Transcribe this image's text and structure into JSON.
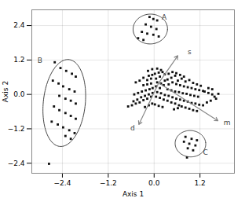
{
  "chart_data": {
    "type": "scatter",
    "xlabel": "Axis 1",
    "ylabel": "Axis 2",
    "xlim": [
      -3.2,
      2.1
    ],
    "ylim": [
      -2.75,
      2.95
    ],
    "xticks": [
      -2.4,
      -1.2,
      0,
      1.2
    ],
    "yticks": [
      -2.4,
      -1.2,
      0,
      1.2,
      2.4
    ],
    "grid": true,
    "series": [
      {
        "color": "#111111",
        "marker": "square",
        "values": [
          [
            0.05,
            0.55
          ],
          [
            0.15,
            0.62
          ],
          [
            0.28,
            0.7
          ],
          [
            0.35,
            0.52
          ],
          [
            0.45,
            0.58
          ],
          [
            0.55,
            0.65
          ],
          [
            0.62,
            0.48
          ],
          [
            0.72,
            0.55
          ],
          [
            0.82,
            0.45
          ],
          [
            0.92,
            0.5
          ],
          [
            1.02,
            0.4
          ],
          [
            1.12,
            0.35
          ],
          [
            1.22,
            0.3
          ],
          [
            0.08,
            0.42
          ],
          [
            0.18,
            0.38
          ],
          [
            0.28,
            0.48
          ],
          [
            0.38,
            0.35
          ],
          [
            0.48,
            0.42
          ],
          [
            0.58,
            0.36
          ],
          [
            0.68,
            0.32
          ],
          [
            0.78,
            0.28
          ],
          [
            0.88,
            0.25
          ],
          [
            0.98,
            0.22
          ],
          [
            1.08,
            0.18
          ],
          [
            1.18,
            0.15
          ],
          [
            1.28,
            0.12
          ],
          [
            0.05,
            0.28
          ],
          [
            0.15,
            0.22
          ],
          [
            0.25,
            0.32
          ],
          [
            0.35,
            0.18
          ],
          [
            0.45,
            0.14
          ],
          [
            0.55,
            0.1
          ],
          [
            0.65,
            0.08
          ],
          [
            0.75,
            0.04
          ],
          [
            0.85,
            0.02
          ],
          [
            0.95,
            -0.02
          ],
          [
            1.05,
            -0.05
          ],
          [
            1.15,
            -0.08
          ],
          [
            0.08,
            0.08
          ],
          [
            0.18,
            0.04
          ],
          [
            0.28,
            -0.02
          ],
          [
            0.38,
            -0.05
          ],
          [
            0.48,
            -0.1
          ],
          [
            0.58,
            -0.15
          ],
          [
            0.68,
            -0.18
          ],
          [
            0.78,
            -0.22
          ],
          [
            0.88,
            -0.25
          ],
          [
            0.98,
            -0.3
          ],
          [
            1.08,
            -0.32
          ],
          [
            1.18,
            -0.36
          ],
          [
            1.28,
            -0.38
          ],
          [
            1.38,
            -0.28
          ],
          [
            1.48,
            -0.22
          ],
          [
            0.05,
            -0.08
          ],
          [
            0.15,
            -0.12
          ],
          [
            0.25,
            -0.18
          ],
          [
            0.35,
            -0.22
          ],
          [
            0.45,
            -0.28
          ],
          [
            0.55,
            -0.32
          ],
          [
            0.65,
            -0.38
          ],
          [
            -0.08,
            0.55
          ],
          [
            -0.18,
            0.5
          ],
          [
            -0.28,
            0.58
          ],
          [
            -0.38,
            0.48
          ],
          [
            -0.48,
            0.42
          ],
          [
            -0.08,
            0.38
          ],
          [
            -0.18,
            0.35
          ],
          [
            -0.28,
            0.32
          ],
          [
            -0.04,
            0.22
          ],
          [
            -0.12,
            0.18
          ],
          [
            -0.22,
            0.14
          ],
          [
            -0.32,
            0.1
          ],
          [
            -0.42,
            0.05
          ],
          [
            -0.52,
            0.0
          ],
          [
            -0.04,
            0.05
          ],
          [
            -0.14,
            0.0
          ],
          [
            -0.24,
            -0.05
          ],
          [
            -0.34,
            -0.1
          ],
          [
            -0.44,
            -0.18
          ],
          [
            -0.54,
            -0.24
          ],
          [
            -0.08,
            -0.08
          ],
          [
            -0.18,
            -0.15
          ],
          [
            -0.28,
            -0.2
          ],
          [
            -0.38,
            -0.28
          ],
          [
            -0.48,
            -0.32
          ],
          [
            -0.58,
            -0.38
          ],
          [
            -0.68,
            -0.42
          ],
          [
            0.02,
            0.72
          ],
          [
            0.12,
            0.76
          ],
          [
            0.22,
            0.78
          ],
          [
            -0.05,
            0.68
          ],
          [
            -0.14,
            0.65
          ],
          [
            0.38,
            0.72
          ],
          [
            0.48,
            0.78
          ],
          [
            0.58,
            0.74
          ],
          [
            0.68,
            0.68
          ],
          [
            0.78,
            0.62
          ],
          [
            1.32,
            0.1
          ],
          [
            1.42,
            0.05
          ],
          [
            1.52,
            0.0
          ],
          [
            1.58,
            -0.08
          ],
          [
            1.62,
            -0.15
          ],
          [
            1.68,
            0.02
          ],
          [
            1.52,
            0.18
          ],
          [
            1.42,
            0.22
          ],
          [
            0.72,
            -0.42
          ],
          [
            0.82,
            -0.46
          ],
          [
            0.92,
            -0.5
          ],
          [
            1.02,
            -0.55
          ],
          [
            0.62,
            -0.48
          ],
          [
            0.52,
            -0.52
          ],
          [
            1.12,
            -0.58
          ],
          [
            0.02,
            -0.35
          ],
          [
            0.12,
            -0.4
          ],
          [
            0.22,
            -0.44
          ],
          [
            -0.05,
            -0.32
          ],
          [
            -0.14,
            -0.38
          ],
          [
            -0.24,
            -0.44
          ],
          [
            -0.05,
            0.88
          ],
          [
            0.08,
            0.9
          ],
          [
            0.18,
            0.85
          ],
          [
            -0.16,
            0.82
          ]
        ]
      },
      {
        "color": "#111111",
        "marker": "square",
        "values": [
          [
            -0.12,
            2.7
          ],
          [
            -0.02,
            2.63
          ],
          [
            0.08,
            2.58
          ],
          [
            -0.22,
            2.44
          ],
          [
            -0.08,
            2.36
          ],
          [
            0.06,
            2.28
          ],
          [
            -0.32,
            2.18
          ],
          [
            -0.18,
            2.12
          ],
          [
            -0.02,
            2.08
          ],
          [
            0.12,
            2.02
          ],
          [
            -0.42,
            1.96
          ],
          [
            -0.28,
            1.9
          ]
        ]
      },
      {
        "color": "#111111",
        "marker": "square",
        "values": [
          [
            -2.75,
            -2.42
          ],
          [
            -2.6,
            1.12
          ],
          [
            -2.45,
            0.92
          ],
          [
            -2.3,
            0.82
          ],
          [
            -2.15,
            0.72
          ],
          [
            -2.05,
            0.62
          ],
          [
            -2.65,
            0.48
          ],
          [
            -2.5,
            0.38
          ],
          [
            -2.38,
            0.28
          ],
          [
            -2.22,
            0.18
          ],
          [
            -2.08,
            0.1
          ],
          [
            -2.48,
            -0.05
          ],
          [
            -2.32,
            -0.15
          ],
          [
            -2.18,
            -0.22
          ],
          [
            -2.05,
            -0.32
          ],
          [
            -2.62,
            -0.42
          ],
          [
            -2.48,
            -0.55
          ],
          [
            -2.32,
            -0.65
          ],
          [
            -2.18,
            -0.75
          ],
          [
            -2.05,
            -0.85
          ],
          [
            -2.68,
            -0.95
          ],
          [
            -2.52,
            -1.05
          ],
          [
            -2.38,
            -1.15
          ],
          [
            -2.22,
            -1.25
          ],
          [
            -2.08,
            -1.35
          ],
          [
            -2.32,
            -1.45
          ],
          [
            -2.18,
            -1.55
          ]
        ]
      },
      {
        "color": "#111111",
        "marker": "square",
        "values": [
          [
            0.82,
            -1.48
          ],
          [
            0.98,
            -1.55
          ],
          [
            1.12,
            -1.6
          ],
          [
            0.78,
            -1.65
          ],
          [
            0.92,
            -1.72
          ],
          [
            1.08,
            -1.78
          ],
          [
            0.88,
            -1.88
          ],
          [
            1.02,
            -1.95
          ],
          [
            0.86,
            -2.2
          ]
        ]
      }
    ],
    "ellipses": [
      {
        "cx": -0.1,
        "cy": 2.28,
        "rx": 0.45,
        "ry": 0.52,
        "angle": -3,
        "color": "#444444"
      },
      {
        "cx": -2.35,
        "cy": -0.3,
        "rx": 0.55,
        "ry": 1.52,
        "angle": -4,
        "color": "#444444"
      },
      {
        "cx": 0.95,
        "cy": -1.72,
        "rx": 0.4,
        "ry": 0.46,
        "angle": 5,
        "color": "#444444"
      }
    ],
    "arrows": [
      {
        "x1": 0.12,
        "y1": 0.4,
        "x2": 0.62,
        "y2": 1.35,
        "color": "#888888"
      },
      {
        "x1": 0.12,
        "y1": 0.4,
        "x2": -0.4,
        "y2": -1.05,
        "color": "#888888"
      },
      {
        "x1": 0.12,
        "y1": 0.4,
        "x2": 1.67,
        "y2": -0.92,
        "color": "#888888"
      }
    ],
    "annotations": [
      {
        "x": 0.2,
        "y": 2.68,
        "text": "A",
        "color": "#444444"
      },
      {
        "x": -3.05,
        "y": 1.18,
        "text": "B",
        "color": "#444444"
      },
      {
        "x": 1.28,
        "y": -2.02,
        "text": "C",
        "color": "#444444"
      },
      {
        "x": 1.82,
        "y": -0.98,
        "text": "m",
        "color": "#444444"
      },
      {
        "x": -0.62,
        "y": -1.18,
        "text": "d",
        "color": "#444444"
      },
      {
        "x": 0.88,
        "y": 1.48,
        "text": "s",
        "color": "#444444"
      }
    ]
  }
}
